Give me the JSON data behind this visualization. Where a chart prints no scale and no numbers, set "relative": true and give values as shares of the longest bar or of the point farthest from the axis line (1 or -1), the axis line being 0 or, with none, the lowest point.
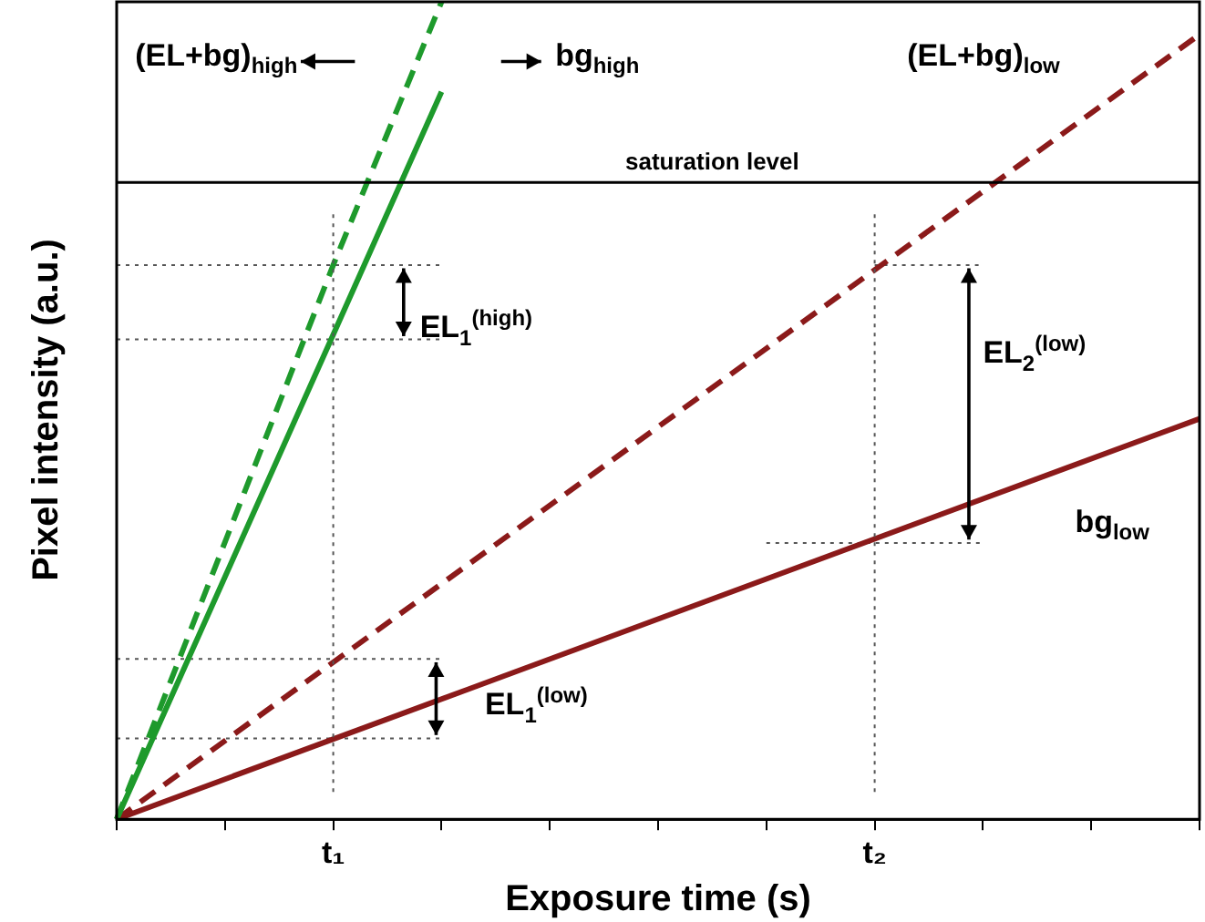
{
  "chart_data": {
    "type": "line",
    "relative": true,
    "xlabel": "Exposure time (s)",
    "ylabel": "Pixel intensity (a.u.)",
    "categories": [
      null,
      null,
      "t₁",
      null,
      null,
      null,
      null,
      "t₂",
      null,
      null,
      null
    ],
    "grid": false,
    "legend": false,
    "marker": "none",
    "series": [
      {
        "values": [
          0,
          null,
          0.678,
          1.0,
          null,
          null,
          null,
          null,
          null,
          null,
          null
        ],
        "color": "#1e9a2c",
        "line_style": "dashed"
      },
      {
        "values": [
          0,
          null,
          0.593,
          0.89,
          null,
          null,
          null,
          null,
          null,
          null,
          null
        ],
        "color": "#1e9a2c",
        "line_style": "solid"
      },
      {
        "values": [
          0,
          null,
          null,
          null,
          null,
          null,
          null,
          null,
          null,
          null,
          0.96
        ],
        "color": "#8b1a1a",
        "line_style": "dashed"
      },
      {
        "values": [
          0,
          null,
          null,
          null,
          null,
          null,
          null,
          null,
          null,
          null,
          0.49
        ],
        "color": "#8b1a1a",
        "line_style": "solid"
      },
      {
        "values": [
          0.678,
          0.678,
          0.678,
          0.678,
          null,
          null,
          null,
          null,
          null,
          null,
          null
        ],
        "color": "#555555",
        "line_style": "dotted"
      },
      {
        "values": [
          null,
          null,
          null,
          null,
          null,
          null,
          null,
          0.678,
          0.678,
          null,
          null
        ],
        "color": "#555555",
        "line_style": "dotted"
      },
      {
        "values": [
          0.587,
          0.587,
          0.587,
          0.587,
          null,
          null,
          null,
          null,
          null,
          null,
          null
        ],
        "color": "#555555",
        "line_style": "dotted"
      },
      {
        "values": [
          null,
          null,
          null,
          null,
          null,
          null,
          0.338,
          0.338,
          0.338,
          null,
          null
        ],
        "color": "#555555",
        "line_style": "dotted"
      },
      {
        "values": [
          0.196,
          0.196,
          0.196,
          0.196,
          null,
          null,
          null,
          null,
          null,
          null,
          null
        ],
        "color": "#555555",
        "line_style": "dotted"
      },
      {
        "values": [
          0.099,
          0.099,
          0.099,
          0.099,
          null,
          null,
          null,
          null,
          null,
          null,
          null
        ],
        "color": "#555555",
        "line_style": "dotted"
      }
    ],
    "ref_lines": [
      {
        "axis": "y",
        "value": 0.779,
        "label": "saturation level",
        "color": "#000000",
        "line_style": "solid"
      },
      {
        "axis": "x",
        "value": "t₁",
        "color": "#555555",
        "line_style": "dotted"
      },
      {
        "axis": "x",
        "value": "t₂",
        "color": "#555555",
        "line_style": "dotted"
      }
    ],
    "annotations": [
      "(EL+bg)$_{high}$",
      "bg$_{high}$",
      "(EL+bg)$_{low}$",
      "EL$_{1}$$^{(high)}$",
      "EL$_{2}$$^{(low)}$",
      "bg$_{low}$",
      "EL$_{1}$$^{(low)}$"
    ]
  }
}
